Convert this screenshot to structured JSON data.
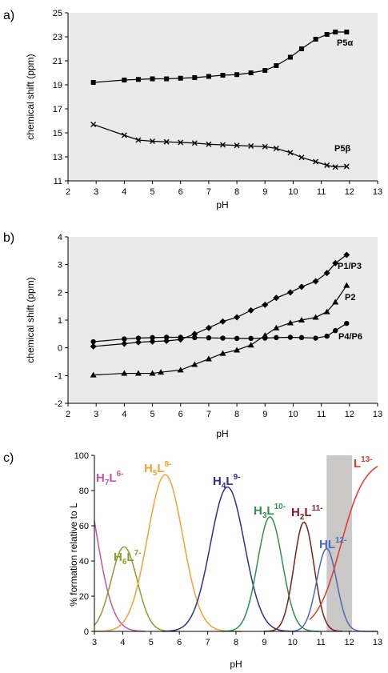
{
  "chart_data": [
    {
      "panel_label": "a)",
      "type": "line",
      "xlabel": "pH",
      "ylabel": "chemical shift (ppm)",
      "xlim": [
        2,
        13
      ],
      "ylim": [
        11,
        25
      ],
      "xticks": [
        2,
        3,
        4,
        5,
        6,
        7,
        8,
        9,
        10,
        11,
        12,
        13
      ],
      "yticks": [
        11,
        13,
        15,
        17,
        19,
        21,
        23,
        25
      ],
      "grid": false,
      "background": "#eaeaea",
      "series": [
        {
          "name": "P5α",
          "marker": "square",
          "x": [
            2.9,
            4.0,
            4.5,
            5.0,
            5.5,
            6.0,
            6.5,
            7.0,
            7.5,
            8.0,
            8.5,
            9.0,
            9.4,
            9.9,
            10.3,
            10.8,
            11.2,
            11.5,
            11.9
          ],
          "y": [
            19.2,
            19.4,
            19.45,
            19.5,
            19.5,
            19.55,
            19.6,
            19.7,
            19.8,
            19.85,
            20.0,
            20.2,
            20.6,
            21.3,
            22.0,
            22.8,
            23.2,
            23.4,
            23.4
          ]
        },
        {
          "name": "P5β",
          "marker": "x",
          "x": [
            2.9,
            4.0,
            4.5,
            5.0,
            5.5,
            6.0,
            6.5,
            7.0,
            7.5,
            8.0,
            8.5,
            9.0,
            9.4,
            9.9,
            10.3,
            10.8,
            11.2,
            11.5,
            11.9
          ],
          "y": [
            15.7,
            14.8,
            14.4,
            14.3,
            14.25,
            14.2,
            14.15,
            14.05,
            14.0,
            13.95,
            13.9,
            13.85,
            13.7,
            13.35,
            12.95,
            12.6,
            12.3,
            12.15,
            12.2
          ]
        }
      ]
    },
    {
      "panel_label": "b)",
      "type": "line",
      "xlabel": "pH",
      "ylabel": "chemical shift (ppm)",
      "xlim": [
        2,
        13
      ],
      "ylim": [
        -2,
        4
      ],
      "xticks": [
        2,
        3,
        4,
        5,
        6,
        7,
        8,
        9,
        10,
        11,
        12,
        13
      ],
      "yticks": [
        -2,
        -1,
        0,
        1,
        2,
        3,
        4
      ],
      "grid": false,
      "background": "#eaeaea",
      "series": [
        {
          "name": "P1/P3",
          "marker": "diamond",
          "x": [
            2.9,
            4.0,
            4.5,
            5.0,
            5.5,
            6.0,
            6.5,
            7.0,
            7.5,
            8.0,
            8.5,
            9.0,
            9.4,
            9.9,
            10.3,
            10.8,
            11.2,
            11.5,
            11.9
          ],
          "y": [
            0.05,
            0.15,
            0.2,
            0.23,
            0.25,
            0.3,
            0.5,
            0.72,
            0.95,
            1.1,
            1.35,
            1.55,
            1.8,
            2.0,
            2.2,
            2.4,
            2.7,
            3.05,
            3.35
          ]
        },
        {
          "name": "P2",
          "marker": "triangle",
          "x": [
            2.9,
            4.0,
            4.5,
            5.0,
            5.3,
            6.0,
            6.5,
            7.0,
            7.5,
            8.0,
            8.5,
            9.0,
            9.4,
            9.9,
            10.3,
            10.8,
            11.2,
            11.5,
            11.9
          ],
          "y": [
            -0.98,
            -0.92,
            -0.92,
            -0.92,
            -0.88,
            -0.8,
            -0.6,
            -0.4,
            -0.2,
            -0.08,
            0.1,
            0.45,
            0.72,
            0.9,
            1.0,
            1.1,
            1.3,
            1.65,
            2.25
          ]
        },
        {
          "name": "P4/P6",
          "marker": "circle",
          "x": [
            2.9,
            4.0,
            4.5,
            5.0,
            5.5,
            6.0,
            6.5,
            7.0,
            7.5,
            8.0,
            8.5,
            9.0,
            9.4,
            9.9,
            10.3,
            10.8,
            11.2,
            11.5,
            11.9
          ],
          "y": [
            0.22,
            0.32,
            0.35,
            0.37,
            0.38,
            0.38,
            0.37,
            0.36,
            0.35,
            0.34,
            0.34,
            0.35,
            0.37,
            0.38,
            0.37,
            0.35,
            0.42,
            0.62,
            0.88
          ]
        }
      ]
    },
    {
      "panel_label": "c)",
      "type": "line",
      "xlabel": "pH",
      "ylabel": "% formation relative to L",
      "xlim": [
        3,
        13
      ],
      "ylim": [
        0,
        100
      ],
      "xticks": [
        3,
        4,
        5,
        6,
        7,
        8,
        9,
        10,
        11,
        12,
        13
      ],
      "yticks": [
        0,
        20,
        40,
        60,
        80,
        100
      ],
      "grid": false,
      "shaded_region": [
        11.2,
        12.1
      ],
      "shaded_color": "#cbc8c8",
      "series": [
        {
          "name": "H7L6-",
          "label_main": "H",
          "label_sub": "7",
          "label_main2": "L",
          "label_sup": "6-",
          "color": "#c7559e",
          "center": 2.4,
          "width": 0.88,
          "peak": 100,
          "range": [
            3,
            4.8
          ]
        },
        {
          "name": "H6L7-",
          "label_main": "H",
          "label_sub": "6",
          "label_main2": "L",
          "label_sup": "7-",
          "color": "#8c9d2f",
          "center": 4.05,
          "width": 0.65,
          "peak": 48,
          "range": [
            3,
            5.9
          ]
        },
        {
          "name": "H5L8-",
          "label_main": "H",
          "label_sub": "5",
          "label_main2": "L",
          "label_sup": "8-",
          "color": "#f7a033",
          "center": 5.5,
          "width": 0.88,
          "peak": 89,
          "range": [
            3,
            8.2
          ]
        },
        {
          "name": "H4L9-",
          "label_main": "H",
          "label_sub": "4",
          "label_main2": "L",
          "label_sup": "9-",
          "color": "#303083",
          "center": 7.7,
          "width": 0.85,
          "peak": 82,
          "range": [
            5.4,
            10.1
          ]
        },
        {
          "name": "H3L10-",
          "label_main": "H",
          "label_sub": "3",
          "label_main2": "L",
          "label_sup": "10-",
          "color": "#2e9150",
          "center": 9.2,
          "width": 0.62,
          "peak": 65,
          "range": [
            7.5,
            10.95
          ]
        },
        {
          "name": "H2L11-",
          "label_main": "H",
          "label_sub": "2",
          "label_main2": "L",
          "label_sup": "11-",
          "color": "#7e1e1e",
          "center": 10.4,
          "width": 0.5,
          "peak": 62,
          "range": [
            9.0,
            11.75
          ]
        },
        {
          "name": "HL12-",
          "label_main": "HL",
          "label_sub": "",
          "label_main2": "",
          "label_sup": "12-",
          "color": "#4a6cb8",
          "center": 11.2,
          "width": 0.5,
          "peak": 47,
          "range": [
            10.0,
            13
          ]
        },
        {
          "name": "L13-",
          "label_main": "L",
          "label_sub": "",
          "label_main2": "",
          "label_sup": "13-",
          "color": "#e2382b",
          "type": "sigmoid",
          "center": 11.7,
          "width": 0.42,
          "peak": 98,
          "range": [
            10.6,
            13
          ]
        }
      ]
    }
  ]
}
